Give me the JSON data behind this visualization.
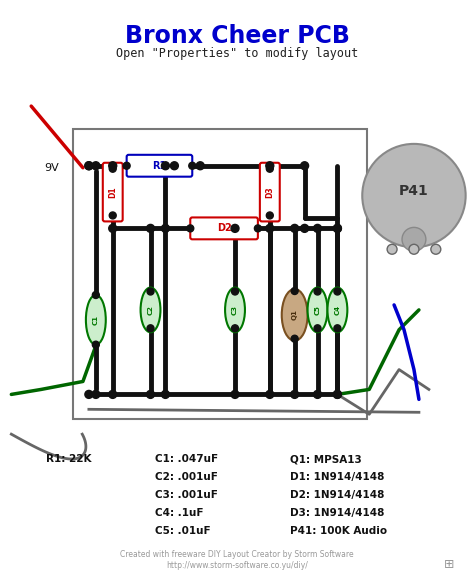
{
  "title": "Bronx Cheer PCB",
  "subtitle": "Open \"Properties\" to modify layout",
  "title_color": "#0000CC",
  "subtitle_color": "#222222",
  "bg_color": "#ffffff",
  "footer_line1": "Created with freeware DIY Layout Creator by Storm Software",
  "footer_line2": "http://www.storm-software.co.yu/diy/",
  "bom_lines": [
    [
      "R1: 22K",
      "C1: .047uF",
      "Q1: MPSA13"
    ],
    [
      "",
      "C2: .001uF",
      "D1: 1N914/4148"
    ],
    [
      "",
      "C3: .001uF",
      "D2: 1N914/4148"
    ],
    [
      "",
      "C4: .1uF",
      "D3: 1N914/4148"
    ],
    [
      "",
      "C5: .01uF",
      "P41: 100K Audio"
    ]
  ],
  "color_red": "#CC0000",
  "color_blue": "#0000BB",
  "color_green": "#007700",
  "color_brown": "#8B5E3C",
  "color_black": "#111111",
  "color_gray": "#888888",
  "color_lgray": "#AAAAAA",
  "wire_red": "#CC0000",
  "wire_green": "#006600",
  "wire_blue": "#0000CC",
  "wire_gray": "#666666",
  "label_9v": "9V",
  "label_p41": "P41"
}
